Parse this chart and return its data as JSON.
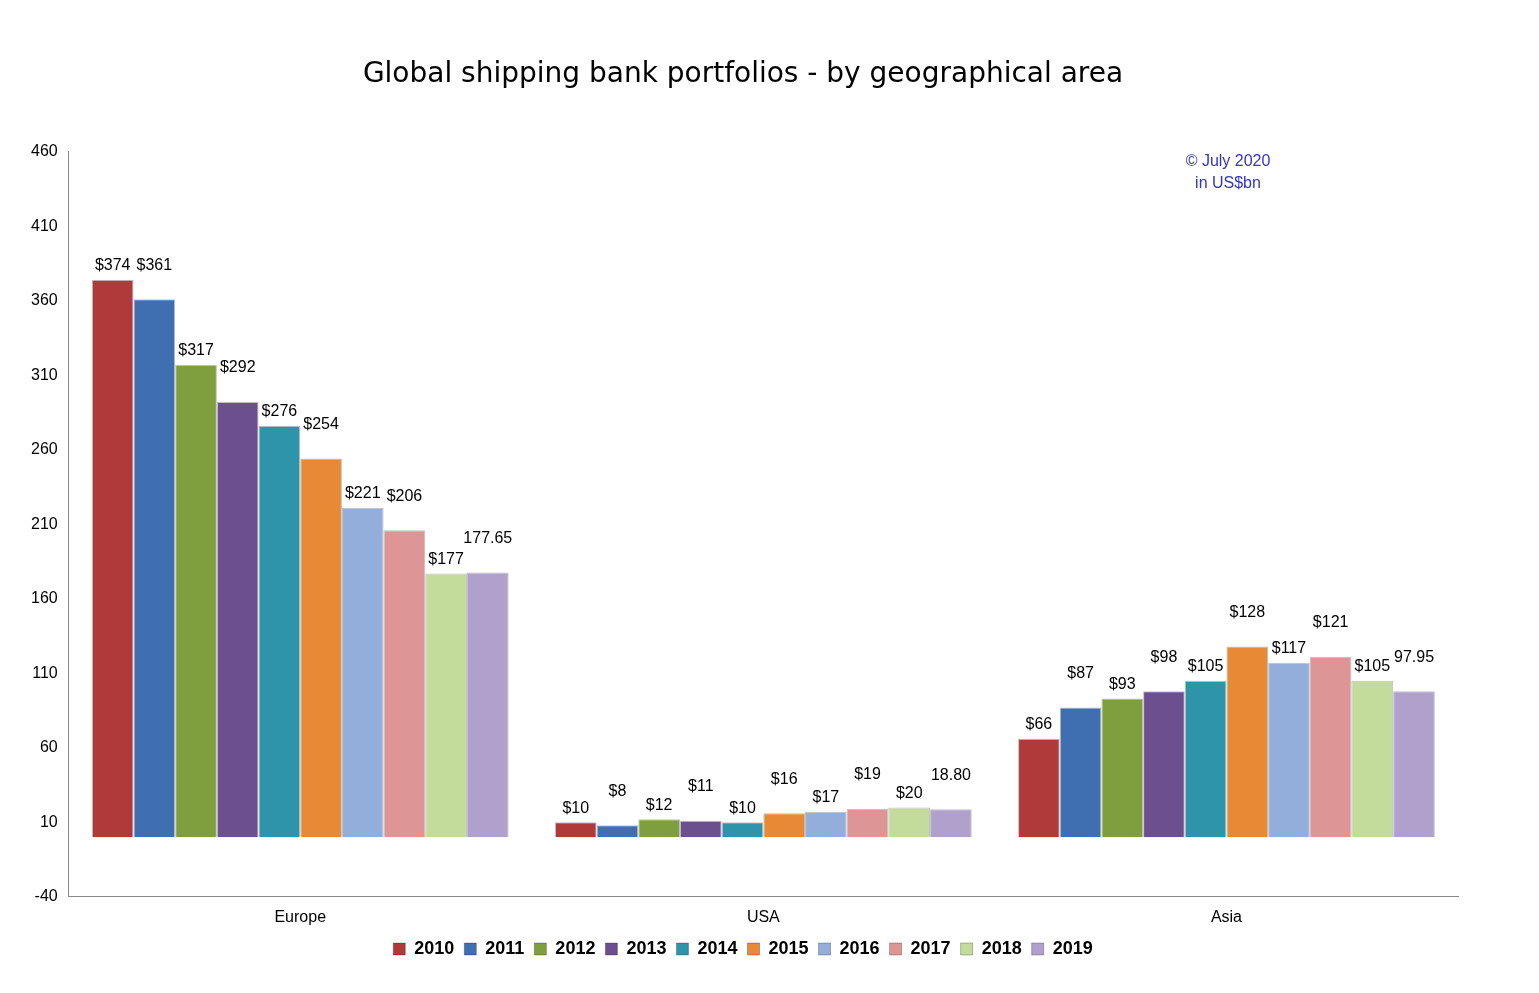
{
  "chart_data": {
    "type": "bar",
    "title": "Global shipping bank portfolios - by geographical area",
    "annotations": [
      "© July 2020",
      "in US$bn"
    ],
    "categories": [
      "Europe",
      "USA",
      "Asia"
    ],
    "ylim": [
      -40,
      460
    ],
    "yticks": [
      -40,
      10,
      60,
      110,
      160,
      210,
      260,
      310,
      360,
      410,
      460
    ],
    "grid": false,
    "legend": "bottom",
    "series": [
      {
        "name": "2010",
        "color": "#b03a3a",
        "values": [
          374,
          10,
          66
        ],
        "value_labels": [
          "$374",
          "$10",
          "$66"
        ]
      },
      {
        "name": "2011",
        "color": "#3f6fb0",
        "values": [
          361,
          8,
          87
        ],
        "value_labels": [
          "$361",
          "$8",
          "$87"
        ]
      },
      {
        "name": "2012",
        "color": "#7f9f3f",
        "values": [
          317,
          12,
          93
        ],
        "value_labels": [
          "$317",
          "$12",
          "$93"
        ]
      },
      {
        "name": "2013",
        "color": "#6b4f8f",
        "values": [
          292,
          11,
          98
        ],
        "value_labels": [
          "$292",
          "$11",
          "$98"
        ]
      },
      {
        "name": "2014",
        "color": "#2e94aa",
        "values": [
          276,
          10,
          105
        ],
        "value_labels": [
          "$276",
          "$10",
          "$105"
        ]
      },
      {
        "name": "2015",
        "color": "#e88a35",
        "values": [
          254,
          16,
          128
        ],
        "value_labels": [
          "$254",
          "$16",
          "$128"
        ]
      },
      {
        "name": "2016",
        "color": "#94aedb",
        "values": [
          221,
          17,
          117
        ],
        "value_labels": [
          "$221",
          "$17",
          "$117"
        ]
      },
      {
        "name": "2017",
        "color": "#de9595",
        "values": [
          206,
          19,
          121
        ],
        "value_labels": [
          "$206",
          "$19",
          "$121"
        ]
      },
      {
        "name": "2018",
        "color": "#c3dc9b",
        "values": [
          177,
          20,
          105
        ],
        "value_labels": [
          "$177",
          "$20",
          "$105"
        ]
      },
      {
        "name": "2019",
        "color": "#b0a0cc",
        "values": [
          177.65,
          18.8,
          97.95
        ],
        "value_labels": [
          "177.65",
          "18.80",
          "97.95"
        ]
      }
    ]
  }
}
